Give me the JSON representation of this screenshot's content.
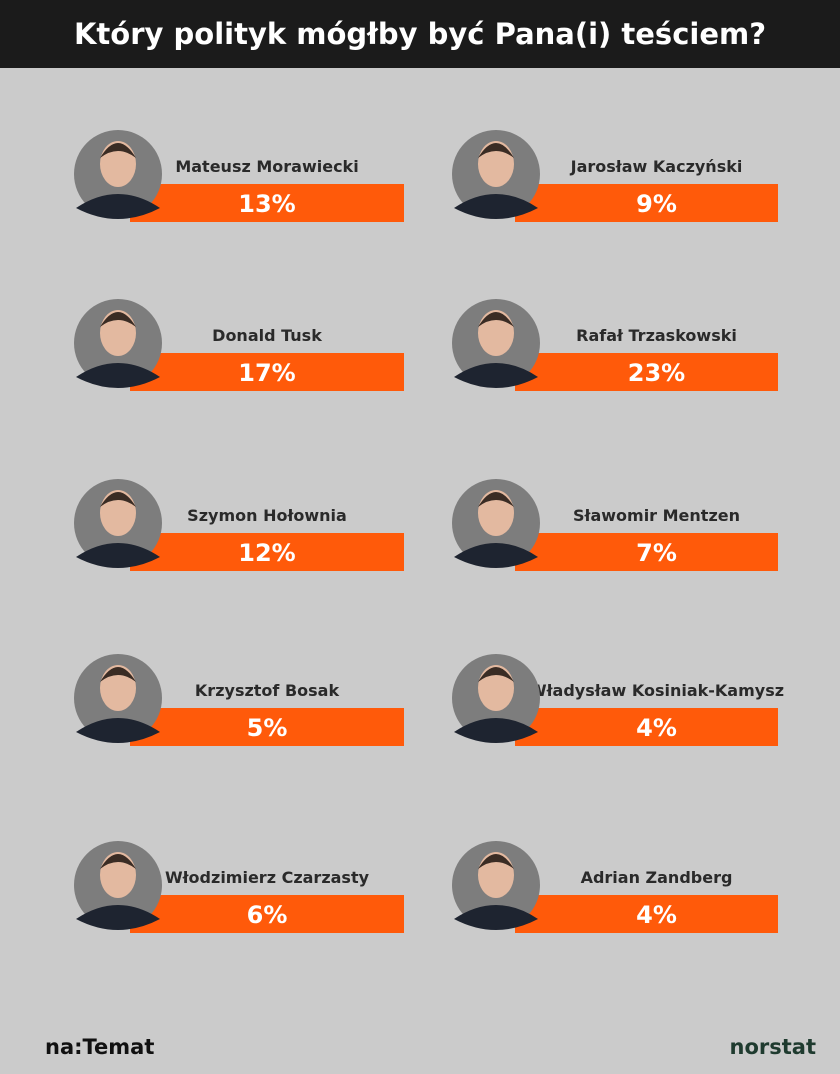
{
  "header": {
    "title": "Który polityk mógłby być Pana(i) teściem?"
  },
  "items": [
    {
      "name": "Mateusz Morawiecki",
      "share": "13%"
    },
    {
      "name": "Jarosław Kaczyński",
      "share": "9%"
    },
    {
      "name": "Donald Tusk",
      "share": "17%"
    },
    {
      "name": "Rafał Trzaskowski",
      "share": "23%"
    },
    {
      "name": "Szymon Hołownia",
      "share": "12%"
    },
    {
      "name": "Sławomir Mentzen",
      "share": "7%"
    },
    {
      "name": "Krzysztof Bosak",
      "share": "5%"
    },
    {
      "name": "Władysław Kosiniak-Kamysz",
      "share": "4%"
    },
    {
      "name": "Włodzimierz Czarzasty",
      "share": "6%"
    },
    {
      "name": "Adrian Zandberg",
      "share": "4%"
    }
  ],
  "footer": {
    "left_logo": "na:Temat",
    "right_logo": "norstat"
  }
}
